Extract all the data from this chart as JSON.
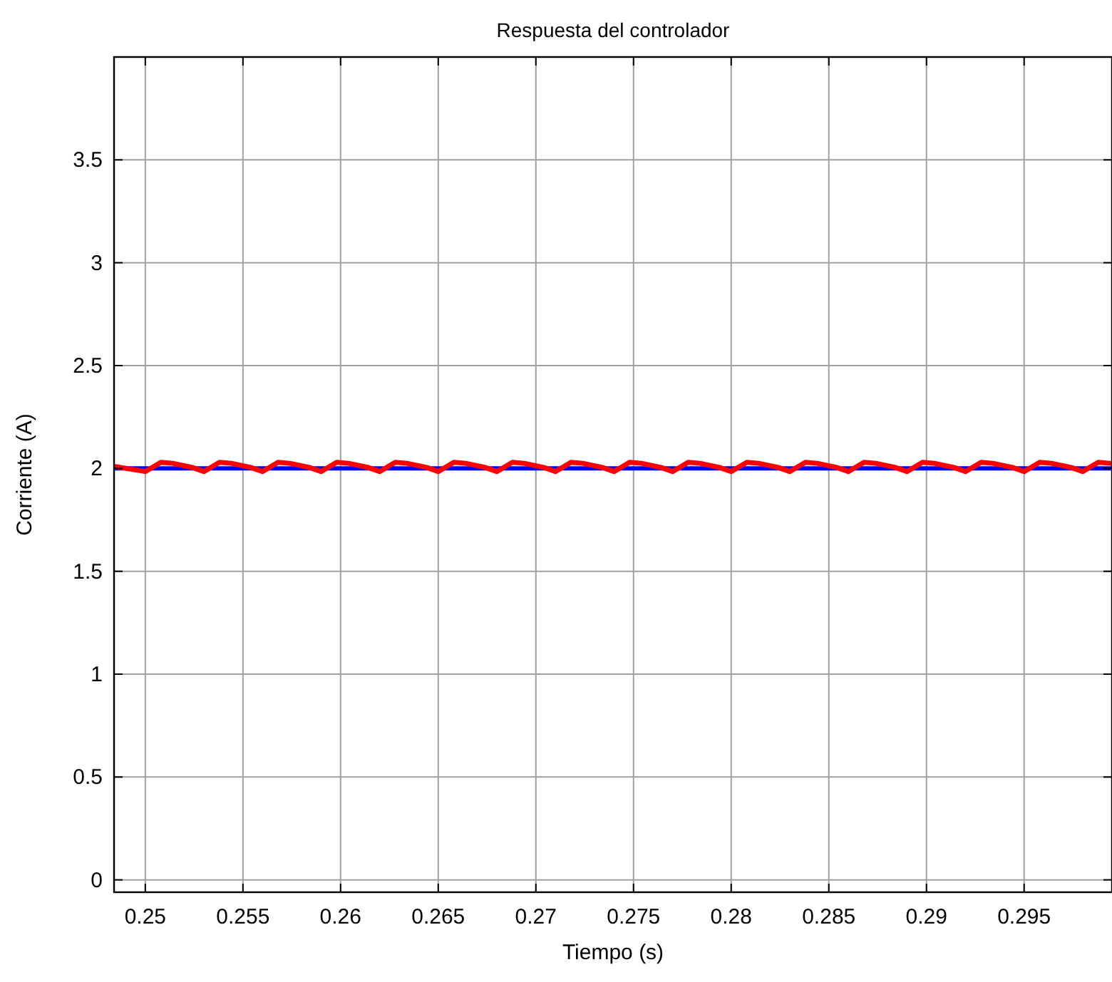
{
  "chart_data": {
    "type": "line",
    "title": "Respuesta del controlador",
    "xlabel": "Tiempo (s)",
    "ylabel": "Corriente (A)",
    "xlim": [
      0.2484,
      0.2995
    ],
    "ylim": [
      -0.06,
      4
    ],
    "xticks": [
      0.25,
      0.255,
      0.26,
      0.265,
      0.27,
      0.275,
      0.28,
      0.285,
      0.29,
      0.295
    ],
    "yticks": [
      0,
      0.5,
      1,
      1.5,
      2,
      2.5,
      3,
      3.5
    ],
    "grid": true,
    "line_style": "solid",
    "marker": "none",
    "series": [
      {
        "color": "#0000ff",
        "x": [
          0.2484,
          0.2995
        ],
        "values": [
          2,
          2
        ]
      },
      {
        "color": "#ff0000",
        "x": [
          0.2484,
          0.25,
          0.2508,
          0.2514,
          0.2524,
          0.253,
          0.2538,
          0.2544,
          0.2554,
          0.256,
          0.2568,
          0.2574,
          0.2584,
          0.259,
          0.2598,
          0.2604,
          0.2614,
          0.262,
          0.2628,
          0.2634,
          0.2644,
          0.265,
          0.2658,
          0.2664,
          0.2674,
          0.268,
          0.2688,
          0.2694,
          0.2704,
          0.271,
          0.2718,
          0.2724,
          0.2734,
          0.274,
          0.2748,
          0.2754,
          0.2764,
          0.277,
          0.2778,
          0.2784,
          0.2794,
          0.28,
          0.2808,
          0.2814,
          0.2824,
          0.283,
          0.2838,
          0.2844,
          0.2854,
          0.286,
          0.2868,
          0.2874,
          0.2884,
          0.289,
          0.2898,
          0.2904,
          0.2914,
          0.292,
          0.2928,
          0.2934,
          0.2944,
          0.295,
          0.2958,
          0.2964,
          0.2974,
          0.298,
          0.2988,
          0.2994
        ],
        "values": [
          2.01,
          1.985,
          2.03,
          2.025,
          2.005,
          1.985,
          2.03,
          2.025,
          2.005,
          1.985,
          2.03,
          2.025,
          2.005,
          1.985,
          2.03,
          2.025,
          2.005,
          1.985,
          2.03,
          2.025,
          2.005,
          1.985,
          2.03,
          2.025,
          2.005,
          1.985,
          2.03,
          2.025,
          2.005,
          1.985,
          2.03,
          2.025,
          2.005,
          1.985,
          2.03,
          2.025,
          2.005,
          1.985,
          2.03,
          2.025,
          2.005,
          1.985,
          2.03,
          2.025,
          2.005,
          1.985,
          2.03,
          2.025,
          2.005,
          1.985,
          2.03,
          2.025,
          2.005,
          1.985,
          2.03,
          2.025,
          2.005,
          1.985,
          2.03,
          2.025,
          2.005,
          1.985,
          2.03,
          2.025,
          2.005,
          1.985,
          2.03,
          2.025
        ]
      }
    ]
  }
}
